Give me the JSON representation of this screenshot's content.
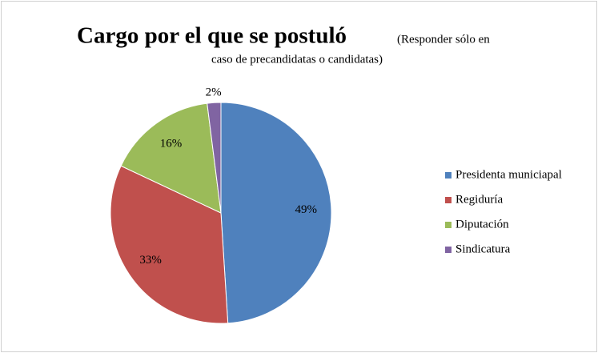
{
  "chart_data": {
    "type": "pie",
    "title": "Cargo por el que se postuló",
    "subtitle": [
      "(Responder sólo en",
      "caso de precandidatas o candidatas)"
    ],
    "categories": [
      "Presidenta municiapal",
      "Regiduría",
      "Diputación",
      "Sindicatura"
    ],
    "values": [
      49,
      33,
      16,
      2
    ],
    "value_labels": [
      "49%",
      "33%",
      "16%",
      "2%"
    ],
    "colors": [
      "#4f81bd",
      "#c0504d",
      "#9bbb59",
      "#8064a2"
    ],
    "legend": "right"
  }
}
